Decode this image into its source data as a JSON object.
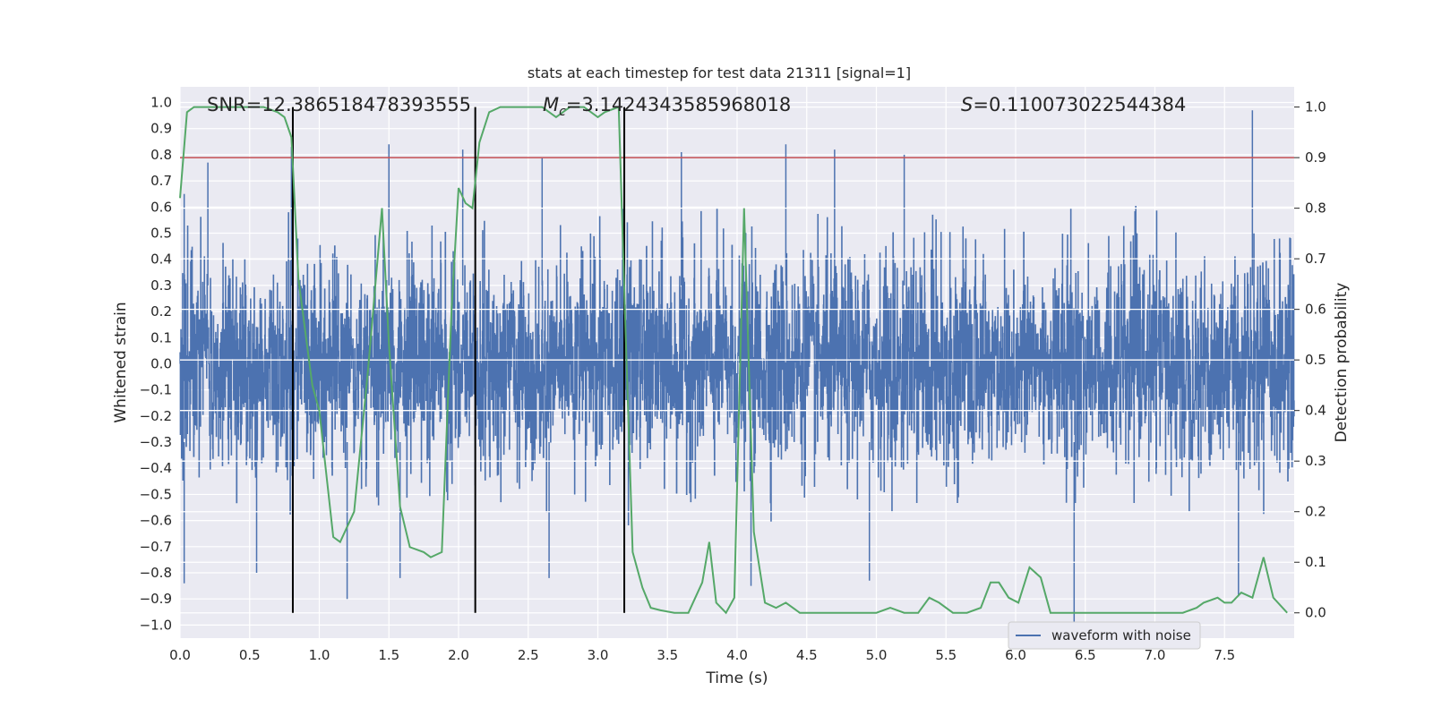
{
  "chart_data": {
    "type": "line",
    "title": "stats at each timestep for test data 21311 [signal=1]",
    "xlabel": "Time (s)",
    "ylabel_left": "Whitened strain",
    "ylabel_right": "Detection probability",
    "xlim": [
      0.0,
      8.0
    ],
    "ylim_left": [
      -1.05,
      1.06
    ],
    "ylim_right": [
      -0.05,
      1.04
    ],
    "x_ticks": [
      "0.0",
      "0.5",
      "1.0",
      "1.5",
      "2.0",
      "2.5",
      "3.0",
      "3.5",
      "4.0",
      "4.5",
      "5.0",
      "5.5",
      "6.0",
      "6.5",
      "7.0",
      "7.5"
    ],
    "y_left_ticks": [
      "1.0",
      "0.9",
      "0.8",
      "0.7",
      "0.6",
      "0.5",
      "0.4",
      "0.3",
      "0.2",
      "0.1",
      "0.0",
      "-0.1",
      "-0.2",
      "-0.3",
      "-0.4",
      "-0.5",
      "-0.6",
      "-0.7",
      "-0.8",
      "-0.9",
      "-1.0"
    ],
    "y_right_ticks": [
      "1.0",
      "0.9",
      "0.8",
      "0.7",
      "0.6",
      "0.5",
      "0.4",
      "0.3",
      "0.2",
      "0.1",
      "0.0"
    ],
    "grid": true,
    "legend_position": "bottom-right",
    "annotations": {
      "snr": "SNR=12.386518478393555",
      "mc": "=3.1424343585968018",
      "mc_symbol": "M",
      "mc_sub": "c",
      "s": "=0.110073022544384",
      "s_symbol": "S"
    },
    "series": [
      {
        "name": "waveform with noise",
        "axis": "left",
        "color": "#4c72b0",
        "description_of_values": "dense noise",
        "envelope_peaks_upper": [
          {
            "x": 0.03,
            "y": 0.65
          },
          {
            "x": 0.2,
            "y": 0.77
          },
          {
            "x": 0.8,
            "y": 0.83
          },
          {
            "x": 1.5,
            "y": 0.84
          },
          {
            "x": 2.03,
            "y": 0.82
          },
          {
            "x": 2.6,
            "y": 0.79
          },
          {
            "x": 3.6,
            "y": 0.81
          },
          {
            "x": 4.35,
            "y": 0.84
          },
          {
            "x": 4.7,
            "y": 0.82
          },
          {
            "x": 5.2,
            "y": 0.8
          },
          {
            "x": 7.7,
            "y": 0.97
          }
        ],
        "envelope_peaks_lower": [
          {
            "x": 0.03,
            "y": -0.84
          },
          {
            "x": 0.55,
            "y": -0.8
          },
          {
            "x": 1.2,
            "y": -0.9
          },
          {
            "x": 1.58,
            "y": -0.82
          },
          {
            "x": 2.65,
            "y": -0.82
          },
          {
            "x": 4.1,
            "y": -0.85
          },
          {
            "x": 4.95,
            "y": -0.83
          },
          {
            "x": 6.42,
            "y": -1.0
          },
          {
            "x": 7.6,
            "y": -0.89
          }
        ]
      },
      {
        "name": "",
        "axis": "right",
        "color": "#55a868",
        "x": [
          0.0,
          0.05,
          0.1,
          0.2,
          0.4,
          0.6,
          0.7,
          0.75,
          0.8,
          0.85,
          0.95,
          1.0,
          1.1,
          1.15,
          1.25,
          1.35,
          1.45,
          1.5,
          1.58,
          1.65,
          1.75,
          1.8,
          1.88,
          1.95,
          2.0,
          2.05,
          2.1,
          2.15,
          2.22,
          2.3,
          2.45,
          2.6,
          2.7,
          2.8,
          2.9,
          3.0,
          3.05,
          3.15,
          3.2,
          3.25,
          3.32,
          3.38,
          3.45,
          3.55,
          3.65,
          3.75,
          3.8,
          3.85,
          3.92,
          3.98,
          4.05,
          4.12,
          4.2,
          4.28,
          4.35,
          4.45,
          4.55,
          4.7,
          4.9,
          5.0,
          5.1,
          5.2,
          5.3,
          5.38,
          5.45,
          5.55,
          5.65,
          5.75,
          5.82,
          5.88,
          5.95,
          6.02,
          6.1,
          6.18,
          6.25,
          6.35,
          6.6,
          6.9,
          7.0,
          7.2,
          7.3,
          7.35,
          7.45,
          7.5,
          7.55,
          7.62,
          7.7,
          7.78,
          7.85,
          7.95
        ],
        "values": [
          0.82,
          0.99,
          1.0,
          1.0,
          1.0,
          1.0,
          0.99,
          0.98,
          0.94,
          0.66,
          0.45,
          0.4,
          0.15,
          0.14,
          0.2,
          0.48,
          0.8,
          0.53,
          0.21,
          0.13,
          0.12,
          0.11,
          0.12,
          0.6,
          0.84,
          0.81,
          0.8,
          0.93,
          0.99,
          1.0,
          1.0,
          1.0,
          0.98,
          1.0,
          1.0,
          0.98,
          0.99,
          1.0,
          0.55,
          0.12,
          0.05,
          0.01,
          0.005,
          0.0,
          0.0,
          0.06,
          0.14,
          0.02,
          0.0,
          0.03,
          0.8,
          0.16,
          0.02,
          0.01,
          0.02,
          0.0,
          0.0,
          0.0,
          0.0,
          0.0,
          0.01,
          0.0,
          0.0,
          0.03,
          0.02,
          0.0,
          0.0,
          0.01,
          0.06,
          0.06,
          0.03,
          0.02,
          0.09,
          0.07,
          0.0,
          0.0,
          0.0,
          0.0,
          0.0,
          0.0,
          0.01,
          0.02,
          0.03,
          0.02,
          0.02,
          0.04,
          0.03,
          0.11,
          0.03,
          0.0
        ]
      },
      {
        "name": "",
        "axis": "right",
        "color": "#c44e52",
        "type": "hline",
        "y": 0.9
      }
    ],
    "vlines": {
      "color": "#000000",
      "x": [
        0.81,
        2.12,
        3.19
      ]
    }
  },
  "legend": {
    "label": "waveform with noise"
  }
}
